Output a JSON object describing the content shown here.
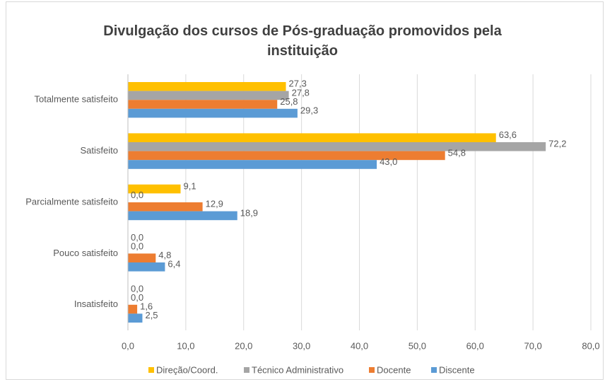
{
  "chart_data": {
    "type": "hbar",
    "title": "Divulgação dos cursos de Pós-graduação promovidos pela instituição",
    "categories": [
      "Totalmente satisfeito",
      "Satisfeito",
      "Parcialmente satisfeito",
      "Pouco satisfeito",
      "Insatisfeito"
    ],
    "series": [
      {
        "name": "Direção/Coord.",
        "color": "#FFC000",
        "values": [
          27.3,
          63.6,
          9.1,
          0.0,
          0.0
        ],
        "value_labels": [
          "27,3",
          "63,6",
          "9,1",
          "0,0",
          "0,0"
        ]
      },
      {
        "name": "Técnico Administrativo",
        "color": "#A5A5A5",
        "values": [
          27.8,
          72.2,
          0.0,
          0.0,
          0.0
        ],
        "value_labels": [
          "27,8",
          "72,2",
          "0,0",
          "0,0",
          "0,0"
        ]
      },
      {
        "name": "Docente",
        "color": "#ED7D31",
        "values": [
          25.8,
          54.8,
          12.9,
          4.8,
          1.6
        ],
        "value_labels": [
          "25,8",
          "54,8",
          "12,9",
          "4,8",
          "1,6"
        ]
      },
      {
        "name": "Discente",
        "color": "#5B9BD5",
        "values": [
          29.3,
          43.0,
          18.9,
          6.4,
          2.5
        ],
        "value_labels": [
          "29,3",
          "43,0",
          "18,9",
          "6,4",
          "2,5"
        ]
      }
    ],
    "xlim": [
      0,
      80
    ],
    "xticks": [
      {
        "value": 0,
        "label": "0,0"
      },
      {
        "value": 10,
        "label": "10,0"
      },
      {
        "value": 20,
        "label": "20,0"
      },
      {
        "value": 30,
        "label": "30,0"
      },
      {
        "value": 40,
        "label": "40,0"
      },
      {
        "value": 50,
        "label": "50,0"
      },
      {
        "value": 60,
        "label": "60,0"
      },
      {
        "value": 70,
        "label": "70,0"
      },
      {
        "value": 80,
        "label": "80,0"
      }
    ],
    "grid": true,
    "legend": "bottom"
  }
}
